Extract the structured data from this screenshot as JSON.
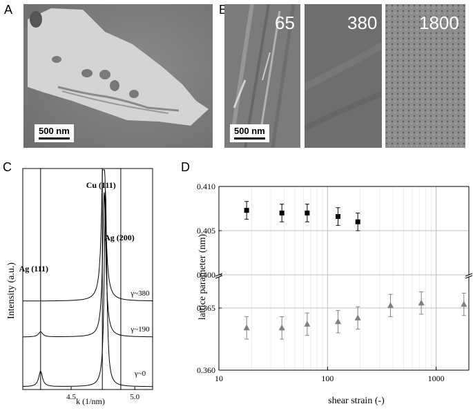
{
  "panels": {
    "a": {
      "label": "A",
      "scale": "500 nm"
    },
    "b": {
      "label": "B",
      "scale": "500 nm",
      "strains": [
        "65",
        "380",
        "1800"
      ]
    },
    "c": {
      "label": "C"
    },
    "d": {
      "label": "D"
    }
  },
  "chart_data": [
    {
      "type": "line",
      "ylabel": "Intensity (a.u.)",
      "xlabel": "k (1/nm)",
      "xlim": [
        4.12,
        5.14
      ],
      "xticks": [
        "4.5",
        "5.0"
      ],
      "reference_lines": [
        {
          "x": 4.26,
          "label": "Ag (111)"
        },
        {
          "x": 4.745,
          "label": "Cu (111)"
        },
        {
          "x": 4.89,
          "label": "Ag (200)"
        }
      ],
      "series": [
        {
          "name": "γ~0",
          "baseline": 0.0,
          "peaks": [
            [
              4.26,
              0.15,
              0.018
            ],
            [
              4.77,
              1.9,
              0.012
            ]
          ]
        },
        {
          "name": "γ~190",
          "baseline": 0.45,
          "peaks": [
            [
              4.26,
              0.05,
              0.02
            ],
            [
              4.76,
              1.4,
              0.015
            ]
          ]
        },
        {
          "name": "γ~380",
          "baseline": 0.88,
          "peaks": [
            [
              4.755,
              1.75,
              0.016
            ]
          ]
        }
      ],
      "grid": false
    },
    {
      "type": "scatter",
      "xlabel": "shear strain (-)",
      "ylabel": "lattice parameter (nm)",
      "xscale": "log",
      "xlim": [
        10,
        2000
      ],
      "xticks": [
        "10",
        "100",
        "1000"
      ],
      "broken_y_axis": true,
      "upper_ylim": [
        0.4,
        0.41
      ],
      "upper_yticks": [
        "0.400",
        "0.405",
        "0.410"
      ],
      "lower_ylim": [
        0.36,
        0.3675
      ],
      "lower_yticks": [
        "0.360",
        "0.365"
      ],
      "grid": true,
      "series": [
        {
          "marker": "square",
          "color": "#000000",
          "points": [
            [
              18,
              0.4073,
              0.001
            ],
            [
              38,
              0.407,
              0.001
            ],
            [
              65,
              0.407,
              0.001
            ],
            [
              125,
              0.4066,
              0.001
            ],
            [
              190,
              0.406,
              0.001
            ]
          ]
        },
        {
          "marker": "triangle",
          "color": "#808080",
          "points": [
            [
              18,
              0.3634,
              0.0009
            ],
            [
              38,
              0.3634,
              0.0009
            ],
            [
              65,
              0.3637,
              0.0009
            ],
            [
              125,
              0.3639,
              0.0009
            ],
            [
              190,
              0.3642,
              0.0009
            ],
            [
              380,
              0.3652,
              0.0009
            ],
            [
              730,
              0.3654,
              0.0009
            ],
            [
              1800,
              0.3653,
              0.0009
            ]
          ]
        }
      ]
    }
  ]
}
